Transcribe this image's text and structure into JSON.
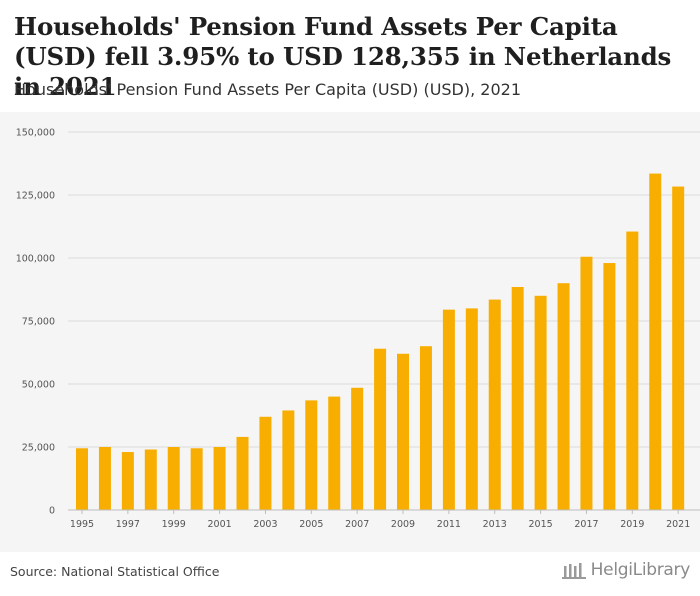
{
  "title": "Households' Pension Fund Assets Per Capita (USD) fell 3.95% to USD 128,355 in Netherlands in 2021",
  "subtitle": "Households' Pension Fund Assets Per Capita (USD) (USD), 2021",
  "source": "Source: National Statistical Office",
  "logo": {
    "brand": "HelgiLibrary"
  },
  "colors": {
    "bar": "#f8ae00",
    "grid": "#dcdcdc",
    "background": "#f5f5f5"
  },
  "chart_data": {
    "type": "bar",
    "title": "Households' Pension Fund Assets Per Capita (USD) (USD), 2021",
    "xlabel": "",
    "ylabel": "",
    "ylim": [
      0,
      150000
    ],
    "yticks": [
      0,
      25000,
      50000,
      75000,
      100000,
      125000,
      150000
    ],
    "ytick_labels": [
      "0",
      "25,000",
      "50,000",
      "75,000",
      "100,000",
      "125,000",
      "150,000"
    ],
    "categories": [
      "1995",
      "1996",
      "1997",
      "1998",
      "1999",
      "2000",
      "2001",
      "2002",
      "2003",
      "2004",
      "2005",
      "2006",
      "2007",
      "2008",
      "2009",
      "2010",
      "2011",
      "2012",
      "2013",
      "2014",
      "2015",
      "2016",
      "2017",
      "2018",
      "2019",
      "2020",
      "2021"
    ],
    "xtick_labels": [
      "1995",
      "1997",
      "1999",
      "2001",
      "2003",
      "2005",
      "2007",
      "2009",
      "2011",
      "2013",
      "2015",
      "2017",
      "2019",
      "2021"
    ],
    "values": [
      24500,
      25000,
      23000,
      24000,
      25000,
      24500,
      25000,
      29000,
      37000,
      39500,
      43500,
      45000,
      48500,
      64000,
      62000,
      65000,
      79500,
      80000,
      83500,
      88500,
      85000,
      90000,
      100500,
      98000,
      110500,
      133500,
      128355
    ],
    "grid": true
  }
}
